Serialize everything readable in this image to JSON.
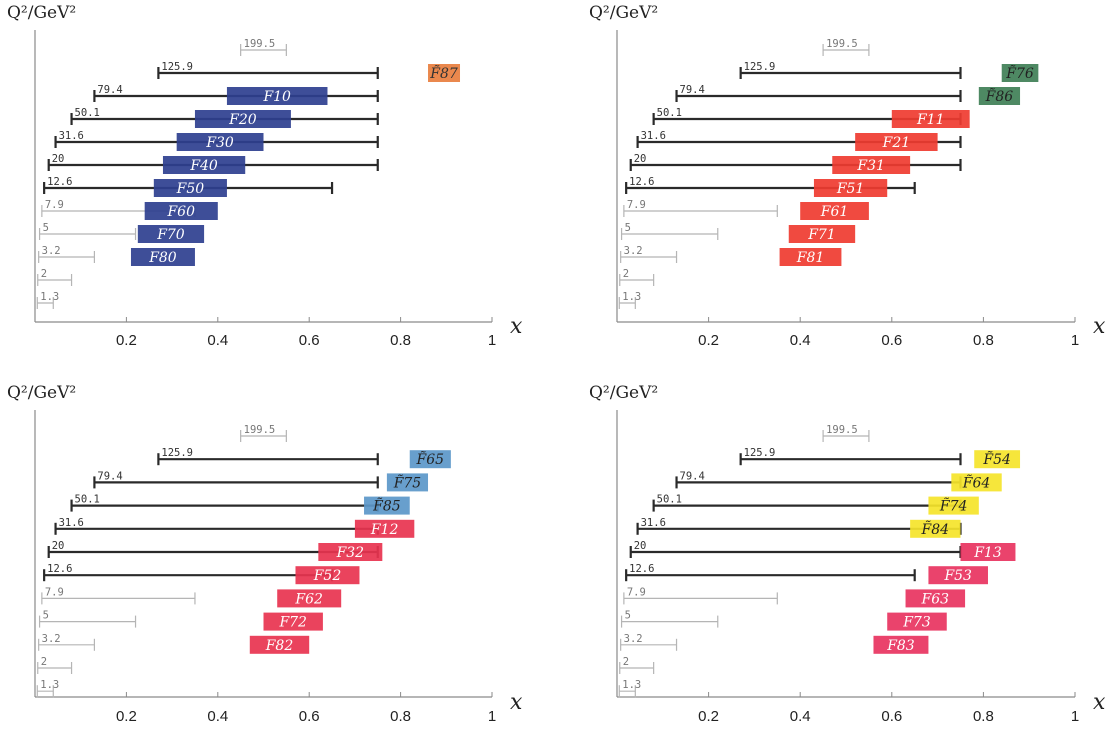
{
  "chart_data": [
    {
      "type": "range-bar",
      "ylabel": "Q²/GeV²",
      "xlabel": "x",
      "x_ticks": [
        "0.2",
        "0.4",
        "0.6",
        "0.8",
        "1"
      ],
      "xlim": [
        0,
        1
      ],
      "q2_levels": [
        {
          "label": "199.5",
          "xmin": 0.45,
          "xmax": 0.55,
          "style": "light"
        },
        {
          "label": "125.9",
          "xmin": 0.27,
          "xmax": 0.75,
          "style": "dark"
        },
        {
          "label": "79.4",
          "xmin": 0.13,
          "xmax": 0.75,
          "style": "dark"
        },
        {
          "label": "50.1",
          "xmin": 0.08,
          "xmax": 0.75,
          "style": "dark"
        },
        {
          "label": "31.6",
          "xmin": 0.045,
          "xmax": 0.75,
          "style": "dark"
        },
        {
          "label": "20",
          "xmin": 0.03,
          "xmax": 0.75,
          "style": "dark"
        },
        {
          "label": "12.6",
          "xmin": 0.02,
          "xmax": 0.65,
          "style": "dark"
        },
        {
          "label": "7.9",
          "xmin": 0.015,
          "xmax": 0.35,
          "style": "light"
        },
        {
          "label": "5",
          "xmin": 0.01,
          "xmax": 0.22,
          "style": "light"
        },
        {
          "label": "3.2",
          "xmin": 0.008,
          "xmax": 0.13,
          "style": "light"
        },
        {
          "label": "2",
          "xmin": 0.006,
          "xmax": 0.08,
          "style": "light"
        },
        {
          "label": "1.3",
          "xmin": 0.005,
          "xmax": 0.04,
          "style": "light"
        }
      ],
      "boxes": [
        {
          "label": "F̃87",
          "xmin": 0.86,
          "xmax": 0.93,
          "level": 1,
          "color": "#e87e3e",
          "text_color": "#333333"
        },
        {
          "label": "F10",
          "xmin": 0.42,
          "xmax": 0.64,
          "level": 2,
          "color": "#2e3f8f",
          "text_color": "#ffffff"
        },
        {
          "label": "F20",
          "xmin": 0.35,
          "xmax": 0.56,
          "level": 3,
          "color": "#2e3f8f",
          "text_color": "#ffffff"
        },
        {
          "label": "F30",
          "xmin": 0.31,
          "xmax": 0.5,
          "level": 4,
          "color": "#2e3f8f",
          "text_color": "#ffffff"
        },
        {
          "label": "F40",
          "xmin": 0.28,
          "xmax": 0.46,
          "level": 5,
          "color": "#2e3f8f",
          "text_color": "#ffffff"
        },
        {
          "label": "F50",
          "xmin": 0.26,
          "xmax": 0.42,
          "level": 6,
          "color": "#2e3f8f",
          "text_color": "#ffffff"
        },
        {
          "label": "F60",
          "xmin": 0.24,
          "xmax": 0.4,
          "level": 7,
          "color": "#2e3f8f",
          "text_color": "#ffffff"
        },
        {
          "label": "F70",
          "xmin": 0.225,
          "xmax": 0.37,
          "level": 8,
          "color": "#2e3f8f",
          "text_color": "#ffffff"
        },
        {
          "label": "F80",
          "xmin": 0.21,
          "xmax": 0.35,
          "level": 9,
          "color": "#2e3f8f",
          "text_color": "#ffffff"
        }
      ]
    },
    {
      "type": "range-bar",
      "ylabel": "Q²/GeV²",
      "xlabel": "x",
      "x_ticks": [
        "0.2",
        "0.4",
        "0.6",
        "0.8",
        "1"
      ],
      "xlim": [
        0,
        1
      ],
      "q2_levels": [
        {
          "label": "199.5",
          "xmin": 0.45,
          "xmax": 0.55,
          "style": "light"
        },
        {
          "label": "125.9",
          "xmin": 0.27,
          "xmax": 0.75,
          "style": "dark"
        },
        {
          "label": "79.4",
          "xmin": 0.13,
          "xmax": 0.75,
          "style": "dark"
        },
        {
          "label": "50.1",
          "xmin": 0.08,
          "xmax": 0.75,
          "style": "dark"
        },
        {
          "label": "31.6",
          "xmin": 0.045,
          "xmax": 0.75,
          "style": "dark"
        },
        {
          "label": "20",
          "xmin": 0.03,
          "xmax": 0.75,
          "style": "dark"
        },
        {
          "label": "12.6",
          "xmin": 0.02,
          "xmax": 0.65,
          "style": "dark"
        },
        {
          "label": "7.9",
          "xmin": 0.015,
          "xmax": 0.35,
          "style": "light"
        },
        {
          "label": "5",
          "xmin": 0.01,
          "xmax": 0.22,
          "style": "light"
        },
        {
          "label": "3.2",
          "xmin": 0.008,
          "xmax": 0.13,
          "style": "light"
        },
        {
          "label": "2",
          "xmin": 0.006,
          "xmax": 0.08,
          "style": "light"
        },
        {
          "label": "1.3",
          "xmin": 0.005,
          "xmax": 0.04,
          "style": "light"
        }
      ],
      "boxes": [
        {
          "label": "F̃76",
          "xmin": 0.84,
          "xmax": 0.92,
          "level": 1,
          "color": "#3f7f56",
          "text_color": "#222222"
        },
        {
          "label": "F̃86",
          "xmin": 0.79,
          "xmax": 0.88,
          "level": 2,
          "color": "#3f7f56",
          "text_color": "#222222"
        },
        {
          "label": "F11",
          "xmin": 0.6,
          "xmax": 0.77,
          "level": 3,
          "color": "#ef3b30",
          "text_color": "#ffffff"
        },
        {
          "label": "F21",
          "xmin": 0.52,
          "xmax": 0.7,
          "level": 4,
          "color": "#ef3b30",
          "text_color": "#ffffff"
        },
        {
          "label": "F31",
          "xmin": 0.47,
          "xmax": 0.64,
          "level": 5,
          "color": "#ef3b30",
          "text_color": "#ffffff"
        },
        {
          "label": "F51",
          "xmin": 0.43,
          "xmax": 0.59,
          "level": 6,
          "color": "#ef3b30",
          "text_color": "#ffffff"
        },
        {
          "label": "F61",
          "xmin": 0.4,
          "xmax": 0.55,
          "level": 7,
          "color": "#ef3b30",
          "text_color": "#ffffff"
        },
        {
          "label": "F71",
          "xmin": 0.375,
          "xmax": 0.52,
          "level": 8,
          "color": "#ef3b30",
          "text_color": "#ffffff"
        },
        {
          "label": "F81",
          "xmin": 0.355,
          "xmax": 0.49,
          "level": 9,
          "color": "#ef3b30",
          "text_color": "#ffffff"
        }
      ]
    },
    {
      "type": "range-bar",
      "ylabel": "Q²/GeV²",
      "xlabel": "x",
      "x_ticks": [
        "0.2",
        "0.4",
        "0.6",
        "0.8",
        "1"
      ],
      "xlim": [
        0,
        1
      ],
      "q2_levels": [
        {
          "label": "199.5",
          "xmin": 0.45,
          "xmax": 0.55,
          "style": "light"
        },
        {
          "label": "125.9",
          "xmin": 0.27,
          "xmax": 0.75,
          "style": "dark"
        },
        {
          "label": "79.4",
          "xmin": 0.13,
          "xmax": 0.75,
          "style": "dark"
        },
        {
          "label": "50.1",
          "xmin": 0.08,
          "xmax": 0.75,
          "style": "dark"
        },
        {
          "label": "31.6",
          "xmin": 0.045,
          "xmax": 0.75,
          "style": "dark"
        },
        {
          "label": "20",
          "xmin": 0.03,
          "xmax": 0.75,
          "style": "dark"
        },
        {
          "label": "12.6",
          "xmin": 0.02,
          "xmax": 0.65,
          "style": "dark"
        },
        {
          "label": "7.9",
          "xmin": 0.015,
          "xmax": 0.35,
          "style": "light"
        },
        {
          "label": "5",
          "xmin": 0.01,
          "xmax": 0.22,
          "style": "light"
        },
        {
          "label": "3.2",
          "xmin": 0.008,
          "xmax": 0.13,
          "style": "light"
        },
        {
          "label": "2",
          "xmin": 0.006,
          "xmax": 0.08,
          "style": "light"
        },
        {
          "label": "1.3",
          "xmin": 0.005,
          "xmax": 0.04,
          "style": "light"
        }
      ],
      "boxes": [
        {
          "label": "F̃65",
          "xmin": 0.82,
          "xmax": 0.91,
          "level": 1,
          "color": "#5b97c9",
          "text_color": "#222222"
        },
        {
          "label": "F̃75",
          "xmin": 0.77,
          "xmax": 0.86,
          "level": 2,
          "color": "#5b97c9",
          "text_color": "#222222"
        },
        {
          "label": "F̃85",
          "xmin": 0.72,
          "xmax": 0.82,
          "level": 3,
          "color": "#5b97c9",
          "text_color": "#222222"
        },
        {
          "label": "F12",
          "xmin": 0.7,
          "xmax": 0.83,
          "level": 4,
          "color": "#e8334f",
          "text_color": "#ffffff"
        },
        {
          "label": "F32",
          "xmin": 0.62,
          "xmax": 0.76,
          "level": 5,
          "color": "#e8334f",
          "text_color": "#ffffff"
        },
        {
          "label": "F52",
          "xmin": 0.57,
          "xmax": 0.71,
          "level": 6,
          "color": "#e8334f",
          "text_color": "#ffffff"
        },
        {
          "label": "F62",
          "xmin": 0.53,
          "xmax": 0.67,
          "level": 7,
          "color": "#e8334f",
          "text_color": "#ffffff"
        },
        {
          "label": "F72",
          "xmin": 0.5,
          "xmax": 0.63,
          "level": 8,
          "color": "#e8334f",
          "text_color": "#ffffff"
        },
        {
          "label": "F82",
          "xmin": 0.47,
          "xmax": 0.6,
          "level": 9,
          "color": "#e8334f",
          "text_color": "#ffffff"
        }
      ]
    },
    {
      "type": "range-bar",
      "ylabel": "Q²/GeV²",
      "xlabel": "x",
      "x_ticks": [
        "0.2",
        "0.4",
        "0.6",
        "0.8",
        "1"
      ],
      "xlim": [
        0,
        1
      ],
      "q2_levels": [
        {
          "label": "199.5",
          "xmin": 0.45,
          "xmax": 0.55,
          "style": "light"
        },
        {
          "label": "125.9",
          "xmin": 0.27,
          "xmax": 0.75,
          "style": "dark"
        },
        {
          "label": "79.4",
          "xmin": 0.13,
          "xmax": 0.75,
          "style": "dark"
        },
        {
          "label": "50.1",
          "xmin": 0.08,
          "xmax": 0.75,
          "style": "dark"
        },
        {
          "label": "31.6",
          "xmin": 0.045,
          "xmax": 0.75,
          "style": "dark"
        },
        {
          "label": "20",
          "xmin": 0.03,
          "xmax": 0.75,
          "style": "dark"
        },
        {
          "label": "12.6",
          "xmin": 0.02,
          "xmax": 0.65,
          "style": "dark"
        },
        {
          "label": "7.9",
          "xmin": 0.015,
          "xmax": 0.35,
          "style": "light"
        },
        {
          "label": "5",
          "xmin": 0.01,
          "xmax": 0.22,
          "style": "light"
        },
        {
          "label": "3.2",
          "xmin": 0.008,
          "xmax": 0.13,
          "style": "light"
        },
        {
          "label": "2",
          "xmin": 0.006,
          "xmax": 0.08,
          "style": "light"
        },
        {
          "label": "1.3",
          "xmin": 0.005,
          "xmax": 0.04,
          "style": "light"
        }
      ],
      "boxes": [
        {
          "label": "F̃54",
          "xmin": 0.78,
          "xmax": 0.88,
          "level": 1,
          "color": "#f5e42a",
          "text_color": "#222222"
        },
        {
          "label": "F̃64",
          "xmin": 0.73,
          "xmax": 0.84,
          "level": 2,
          "color": "#f5e42a",
          "text_color": "#222222"
        },
        {
          "label": "F̃74",
          "xmin": 0.68,
          "xmax": 0.79,
          "level": 3,
          "color": "#f5e42a",
          "text_color": "#222222"
        },
        {
          "label": "F̃84",
          "xmin": 0.64,
          "xmax": 0.75,
          "level": 4,
          "color": "#f5e42a",
          "text_color": "#222222"
        },
        {
          "label": "F13",
          "xmin": 0.75,
          "xmax": 0.87,
          "level": 5,
          "color": "#e8335f",
          "text_color": "#ffffff"
        },
        {
          "label": "F53",
          "xmin": 0.68,
          "xmax": 0.81,
          "level": 6,
          "color": "#e8335f",
          "text_color": "#ffffff"
        },
        {
          "label": "F63",
          "xmin": 0.63,
          "xmax": 0.76,
          "level": 7,
          "color": "#e8335f",
          "text_color": "#ffffff"
        },
        {
          "label": "F73",
          "xmin": 0.59,
          "xmax": 0.72,
          "level": 8,
          "color": "#e8335f",
          "text_color": "#ffffff"
        },
        {
          "label": "F83",
          "xmin": 0.56,
          "xmax": 0.68,
          "level": 9,
          "color": "#e8335f",
          "text_color": "#ffffff"
        }
      ]
    }
  ]
}
